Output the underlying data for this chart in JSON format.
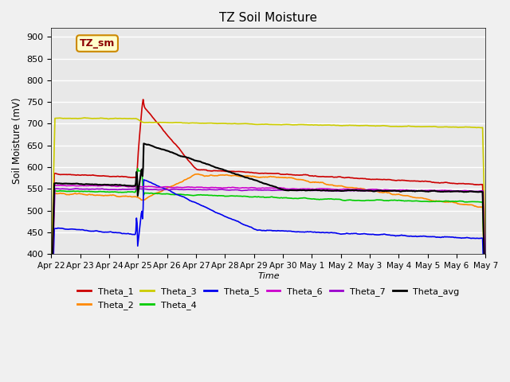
{
  "title": "TZ Soil Moisture",
  "ylabel": "Soil Moisture (mV)",
  "xlabel": "Time",
  "ylim": [
    400,
    920
  ],
  "yticks": [
    400,
    450,
    500,
    550,
    600,
    650,
    700,
    750,
    800,
    850,
    900
  ],
  "x_labels": [
    "Apr 22",
    "Apr 23",
    "Apr 24",
    "Apr 25",
    "Apr 26",
    "Apr 27",
    "Apr 28",
    "Apr 29",
    "Apr 30",
    "May 1",
    "May 2",
    "May 3",
    "May 4",
    "May 5",
    "May 6",
    "May 7"
  ],
  "n_xticks": 16,
  "bg_color": "#e8e8e8",
  "grid_color": "#ffffff",
  "label_box": "TZ_sm",
  "label_box_color": "#ffffcc",
  "label_box_text_color": "#8b0000",
  "series_colors": {
    "Theta_1": "#cc0000",
    "Theta_2": "#ff8800",
    "Theta_3": "#cccc00",
    "Theta_4": "#00cc00",
    "Theta_5": "#0000ee",
    "Theta_6": "#cc00cc",
    "Theta_7": "#9900cc",
    "Theta_avg": "#000000"
  }
}
